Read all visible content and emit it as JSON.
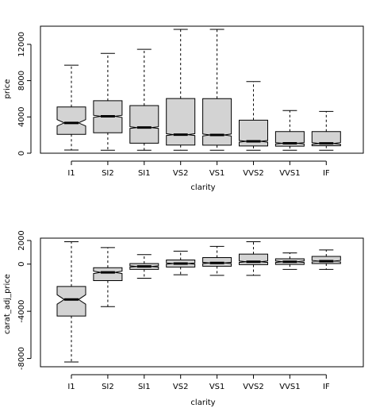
{
  "chart_data": [
    {
      "type": "box",
      "notched": true,
      "title": "",
      "xlabel": "clarity",
      "ylabel": "price",
      "ylim": [
        0,
        14000
      ],
      "yticks": [
        0,
        4000,
        8000,
        12000
      ],
      "categories": [
        "I1",
        "SI2",
        "SI1",
        "VS2",
        "VS1",
        "VVS2",
        "VVS1",
        "IF"
      ],
      "box_fill": "#d3d3d3",
      "series": [
        {
          "category": "I1",
          "whisker_low": 350,
          "q1": 2080,
          "median": 3340,
          "q3": 5100,
          "whisker_high": 9700,
          "notch_low": 3000,
          "notch_high": 3700
        },
        {
          "category": "SI2",
          "whisker_low": 330,
          "q1": 2260,
          "median": 4070,
          "q3": 5780,
          "whisker_high": 11000,
          "notch_low": 3950,
          "notch_high": 4180
        },
        {
          "category": "SI1",
          "whisker_low": 330,
          "q1": 1100,
          "median": 2830,
          "q3": 5250,
          "whisker_high": 11450,
          "notch_low": 2740,
          "notch_high": 2920
        },
        {
          "category": "VS2",
          "whisker_low": 330,
          "q1": 900,
          "median": 2050,
          "q3": 6030,
          "whisker_high": 13650,
          "notch_low": 1950,
          "notch_high": 2150
        },
        {
          "category": "VS1",
          "whisker_low": 330,
          "q1": 880,
          "median": 2010,
          "q3": 6020,
          "whisker_high": 13650,
          "notch_low": 1900,
          "notch_high": 2120
        },
        {
          "category": "VVS2",
          "whisker_low": 330,
          "q1": 800,
          "median": 1310,
          "q3": 3640,
          "whisker_high": 7900,
          "notch_low": 1220,
          "notch_high": 1400
        },
        {
          "category": "VVS1",
          "whisker_low": 330,
          "q1": 780,
          "median": 1090,
          "q3": 2380,
          "whisker_high": 4700,
          "notch_low": 1020,
          "notch_high": 1160
        },
        {
          "category": "IF",
          "whisker_low": 330,
          "q1": 820,
          "median": 1080,
          "q3": 2380,
          "whisker_high": 4600,
          "notch_low": 990,
          "notch_high": 1170
        }
      ]
    },
    {
      "type": "box",
      "notched": true,
      "title": "",
      "xlabel": "clarity",
      "ylabel": "carat_adj_price",
      "ylim": [
        -8700,
        2200
      ],
      "yticks": [
        -8000,
        -4000,
        0,
        2000
      ],
      "categories": [
        "I1",
        "SI2",
        "SI1",
        "VS2",
        "VS1",
        "VVS2",
        "VVS1",
        "IF"
      ],
      "box_fill": "#d3d3d3",
      "series": [
        {
          "category": "I1",
          "whisker_low": -8300,
          "q1": -4400,
          "median": -3000,
          "q3": -1900,
          "whisker_high": 1900,
          "notch_low": -3400,
          "notch_high": -2600
        },
        {
          "category": "SI2",
          "whisker_low": -3600,
          "q1": -1400,
          "median": -700,
          "q3": -300,
          "whisker_high": 1400,
          "notch_low": -800,
          "notch_high": -600
        },
        {
          "category": "SI1",
          "whisker_low": -1200,
          "q1": -450,
          "median": -200,
          "q3": 50,
          "whisker_high": 800,
          "notch_low": -250,
          "notch_high": -150
        },
        {
          "category": "VS2",
          "whisker_low": -900,
          "q1": -250,
          "median": 50,
          "q3": 350,
          "whisker_high": 1100,
          "notch_low": 0,
          "notch_high": 100
        },
        {
          "category": "VS1",
          "whisker_low": -950,
          "q1": -180,
          "median": 100,
          "q3": 550,
          "whisker_high": 1500,
          "notch_low": 50,
          "notch_high": 150
        },
        {
          "category": "VVS2",
          "whisker_low": -950,
          "q1": -50,
          "median": 200,
          "q3": 850,
          "whisker_high": 1900,
          "notch_low": 140,
          "notch_high": 260
        },
        {
          "category": "VVS1",
          "whisker_low": -450,
          "q1": -30,
          "median": 200,
          "q3": 450,
          "whisker_high": 950,
          "notch_low": 140,
          "notch_high": 260
        },
        {
          "category": "IF",
          "whisker_low": -450,
          "q1": 50,
          "median": 250,
          "q3": 650,
          "whisker_high": 1200,
          "notch_low": 190,
          "notch_high": 310
        }
      ]
    }
  ]
}
